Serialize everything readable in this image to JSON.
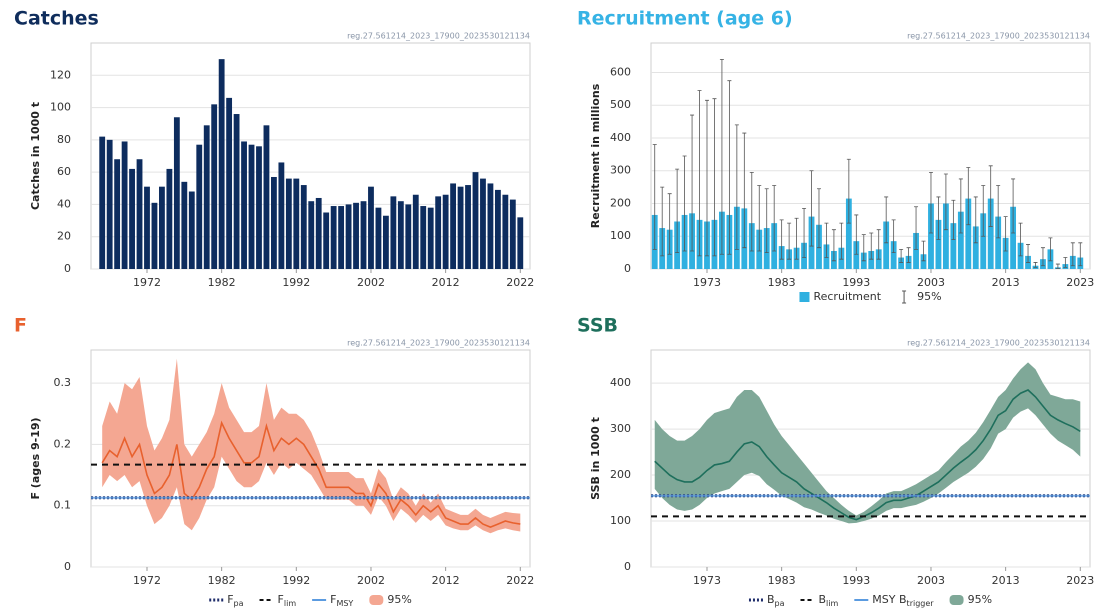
{
  "chart_data": [
    {
      "type": "bar",
      "title": "Catches",
      "title_color": "#0f2d5c",
      "note": "reg.27.561214_2023_17900_2023530121134",
      "ylabel": "Catches in 1000 t",
      "legend": false,
      "grid": true,
      "x": [
        1966,
        1967,
        1968,
        1969,
        1970,
        1971,
        1972,
        1973,
        1974,
        1975,
        1976,
        1977,
        1978,
        1979,
        1980,
        1981,
        1982,
        1983,
        1984,
        1985,
        1986,
        1987,
        1988,
        1989,
        1990,
        1991,
        1992,
        1993,
        1994,
        1995,
        1996,
        1997,
        1998,
        1999,
        2000,
        2001,
        2002,
        2003,
        2004,
        2005,
        2006,
        2007,
        2008,
        2009,
        2010,
        2011,
        2012,
        2013,
        2014,
        2015,
        2016,
        2017,
        2018,
        2019,
        2020,
        2021,
        2022
      ],
      "xlim": [
        1964.5,
        2023.3
      ],
      "xticks": [
        1972,
        1982,
        1992,
        2002,
        2012,
        2022
      ],
      "ylim": [
        0,
        140
      ],
      "yticks": [
        0,
        20,
        40,
        60,
        80,
        100,
        120
      ],
      "series": [
        {
          "color": "#0d2c5e",
          "values": [
            82,
            80,
            68,
            79,
            62,
            68,
            51,
            41,
            51,
            62,
            94,
            54,
            48,
            77,
            89,
            102,
            130,
            106,
            96,
            79,
            77,
            76,
            89,
            57,
            66,
            56,
            56,
            52,
            42,
            44,
            35,
            39,
            39,
            40,
            41,
            42,
            51,
            38,
            33,
            45,
            42,
            40,
            46,
            39,
            38,
            45,
            46,
            53,
            51,
            52,
            60,
            56,
            53,
            49,
            46,
            43,
            32
          ]
        }
      ]
    },
    {
      "type": "bar",
      "title": "Recruitment (age 6)",
      "title_color": "#36b3e5",
      "note": "reg.27.561214_2023_17900_2023530121134",
      "ylabel": "Recruitment in millions",
      "legend": true,
      "grid": true,
      "x": [
        1966,
        1967,
        1968,
        1969,
        1970,
        1971,
        1972,
        1973,
        1974,
        1975,
        1976,
        1977,
        1978,
        1979,
        1980,
        1981,
        1982,
        1983,
        1984,
        1985,
        1986,
        1987,
        1988,
        1989,
        1990,
        1991,
        1992,
        1993,
        1994,
        1995,
        1996,
        1997,
        1998,
        1999,
        2000,
        2001,
        2002,
        2003,
        2004,
        2005,
        2006,
        2007,
        2008,
        2009,
        2010,
        2011,
        2012,
        2013,
        2014,
        2015,
        2016,
        2017,
        2018,
        2019,
        2020,
        2021,
        2022,
        2023
      ],
      "xlim": [
        1965.5,
        2024.3
      ],
      "xticks": [
        1973,
        1983,
        1993,
        2003,
        2013,
        2023
      ],
      "ylim": [
        0,
        690
      ],
      "yticks": [
        0,
        100,
        200,
        300,
        400,
        500,
        600
      ],
      "series": [
        {
          "name": "Recruitment",
          "color": "#2fb0e0",
          "values": [
            165,
            125,
            120,
            145,
            165,
            170,
            150,
            145,
            150,
            175,
            165,
            190,
            185,
            140,
            120,
            125,
            140,
            70,
            60,
            65,
            80,
            160,
            135,
            75,
            55,
            65,
            215,
            85,
            50,
            55,
            60,
            145,
            85,
            35,
            40,
            110,
            45,
            200,
            150,
            200,
            140,
            175,
            215,
            130,
            170,
            215,
            160,
            95,
            190,
            80,
            40,
            10,
            30,
            60,
            5,
            15,
            40,
            35
          ],
          "low": [
            60,
            40,
            45,
            50,
            55,
            55,
            40,
            40,
            40,
            45,
            45,
            60,
            65,
            55,
            55,
            50,
            55,
            30,
            30,
            30,
            35,
            70,
            65,
            35,
            25,
            30,
            140,
            45,
            25,
            30,
            30,
            80,
            50,
            20,
            20,
            60,
            25,
            110,
            90,
            120,
            90,
            110,
            135,
            80,
            100,
            130,
            95,
            55,
            110,
            40,
            20,
            5,
            10,
            25,
            2,
            5,
            10,
            10
          ],
          "high": [
            380,
            250,
            230,
            305,
            345,
            470,
            545,
            515,
            520,
            640,
            575,
            440,
            415,
            295,
            255,
            245,
            255,
            150,
            140,
            155,
            185,
            300,
            245,
            140,
            120,
            140,
            335,
            165,
            105,
            110,
            120,
            220,
            150,
            60,
            65,
            190,
            85,
            295,
            220,
            290,
            210,
            275,
            310,
            220,
            255,
            315,
            255,
            160,
            275,
            140,
            75,
            20,
            65,
            95,
            15,
            35,
            80,
            80
          ],
          "interval": {
            "name": "95%",
            "color": "#555555"
          }
        }
      ]
    },
    {
      "type": "line",
      "title": "F",
      "title_color": "#e8612e",
      "note": "reg.27.561214_2023_17900_2023530121134",
      "ylabel": "F (ages 9-19)",
      "legend": true,
      "grid": true,
      "x": [
        1966,
        1967,
        1968,
        1969,
        1970,
        1971,
        1972,
        1973,
        1974,
        1975,
        1976,
        1977,
        1978,
        1979,
        1980,
        1981,
        1982,
        1983,
        1984,
        1985,
        1986,
        1987,
        1988,
        1989,
        1990,
        1991,
        1992,
        1993,
        1994,
        1995,
        1996,
        1997,
        1998,
        1999,
        2000,
        2001,
        2002,
        2003,
        2004,
        2005,
        2006,
        2007,
        2008,
        2009,
        2010,
        2011,
        2012,
        2013,
        2014,
        2015,
        2016,
        2017,
        2018,
        2019,
        2020,
        2021,
        2022
      ],
      "xlim": [
        1964.5,
        2023.3
      ],
      "xticks": [
        1972,
        1982,
        1992,
        2002,
        2012,
        2022
      ],
      "ylim": [
        0,
        0.354
      ],
      "yticks": [
        0,
        0.1,
        0.2,
        0.3
      ],
      "series": [
        {
          "color": "#e8612e",
          "values": [
            0.17,
            0.19,
            0.18,
            0.21,
            0.18,
            0.2,
            0.15,
            0.12,
            0.13,
            0.15,
            0.2,
            0.12,
            0.11,
            0.13,
            0.16,
            0.18,
            0.235,
            0.21,
            0.19,
            0.17,
            0.17,
            0.18,
            0.23,
            0.19,
            0.21,
            0.2,
            0.21,
            0.2,
            0.18,
            0.16,
            0.13,
            0.13,
            0.13,
            0.13,
            0.12,
            0.12,
            0.1,
            0.135,
            0.12,
            0.09,
            0.11,
            0.1,
            0.085,
            0.1,
            0.09,
            0.1,
            0.08,
            0.075,
            0.07,
            0.07,
            0.08,
            0.07,
            0.065,
            0.07,
            0.075,
            0.072,
            0.07
          ],
          "low": [
            0.13,
            0.15,
            0.14,
            0.15,
            0.13,
            0.14,
            0.1,
            0.07,
            0.08,
            0.1,
            0.13,
            0.07,
            0.06,
            0.08,
            0.11,
            0.13,
            0.18,
            0.16,
            0.14,
            0.13,
            0.13,
            0.14,
            0.17,
            0.15,
            0.17,
            0.16,
            0.17,
            0.16,
            0.15,
            0.13,
            0.11,
            0.11,
            0.11,
            0.11,
            0.1,
            0.1,
            0.085,
            0.115,
            0.1,
            0.075,
            0.095,
            0.085,
            0.072,
            0.085,
            0.075,
            0.085,
            0.068,
            0.063,
            0.06,
            0.06,
            0.068,
            0.06,
            0.055,
            0.06,
            0.063,
            0.06,
            0.058
          ],
          "high": [
            0.23,
            0.27,
            0.25,
            0.3,
            0.29,
            0.31,
            0.23,
            0.19,
            0.21,
            0.24,
            0.34,
            0.2,
            0.18,
            0.2,
            0.22,
            0.25,
            0.3,
            0.26,
            0.24,
            0.22,
            0.22,
            0.23,
            0.3,
            0.24,
            0.26,
            0.25,
            0.25,
            0.24,
            0.22,
            0.19,
            0.155,
            0.155,
            0.155,
            0.155,
            0.145,
            0.145,
            0.12,
            0.16,
            0.145,
            0.11,
            0.13,
            0.12,
            0.1,
            0.12,
            0.105,
            0.12,
            0.095,
            0.09,
            0.085,
            0.085,
            0.095,
            0.085,
            0.08,
            0.085,
            0.09,
            0.088,
            0.087
          ],
          "interval": {
            "name": "95%",
            "color": "#f4a792"
          }
        }
      ],
      "reference_lines": [
        {
          "name": "F",
          "sub": "pa",
          "value": 0.113,
          "style": "dotted",
          "color": "#1f2d6b"
        },
        {
          "name": "F",
          "sub": "lim",
          "value": 0.167,
          "style": "dashed",
          "color": "#111111"
        },
        {
          "name": "F",
          "sub": "MSY",
          "value": 0.113,
          "style": "solid",
          "color": "#5b9be0"
        }
      ]
    },
    {
      "type": "line",
      "title": "SSB",
      "title_color": "#1e6f5c",
      "note": "reg.27.561214_2023_17900_2023530121134",
      "ylabel": "SSB in 1000 t",
      "legend": true,
      "grid": true,
      "x": [
        1966,
        1967,
        1968,
        1969,
        1970,
        1971,
        1972,
        1973,
        1974,
        1975,
        1976,
        1977,
        1978,
        1979,
        1980,
        1981,
        1982,
        1983,
        1984,
        1985,
        1986,
        1987,
        1988,
        1989,
        1990,
        1991,
        1992,
        1993,
        1994,
        1995,
        1996,
        1997,
        1998,
        1999,
        2000,
        2001,
        2002,
        2003,
        2004,
        2005,
        2006,
        2007,
        2008,
        2009,
        2010,
        2011,
        2012,
        2013,
        2014,
        2015,
        2016,
        2017,
        2018,
        2019,
        2020,
        2021,
        2022,
        2023
      ],
      "xlim": [
        1965.5,
        2024.3
      ],
      "xticks": [
        1973,
        1983,
        1993,
        2003,
        2013,
        2023
      ],
      "ylim": [
        0,
        472
      ],
      "yticks": [
        0,
        100,
        200,
        300,
        400
      ],
      "series": [
        {
          "color": "#1e6f5c",
          "values": [
            230,
            215,
            200,
            190,
            185,
            185,
            195,
            210,
            222,
            225,
            230,
            250,
            268,
            272,
            262,
            240,
            222,
            205,
            195,
            185,
            170,
            160,
            150,
            140,
            128,
            118,
            108,
            103,
            110,
            118,
            128,
            140,
            145,
            145,
            150,
            155,
            165,
            175,
            185,
            200,
            215,
            228,
            240,
            255,
            275,
            300,
            330,
            340,
            365,
            378,
            385,
            370,
            350,
            330,
            320,
            312,
            305,
            295
          ],
          "low": [
            170,
            150,
            135,
            125,
            122,
            125,
            135,
            150,
            160,
            165,
            170,
            185,
            200,
            205,
            198,
            180,
            168,
            155,
            148,
            140,
            130,
            125,
            118,
            112,
            105,
            100,
            95,
            96,
            100,
            105,
            112,
            122,
            128,
            128,
            132,
            135,
            142,
            150,
            160,
            172,
            185,
            195,
            205,
            218,
            235,
            258,
            290,
            300,
            325,
            338,
            345,
            330,
            310,
            290,
            275,
            265,
            255,
            240
          ],
          "high": [
            320,
            300,
            285,
            275,
            275,
            285,
            300,
            320,
            335,
            340,
            345,
            370,
            385,
            385,
            370,
            340,
            310,
            285,
            265,
            245,
            225,
            205,
            185,
            165,
            150,
            135,
            122,
            112,
            120,
            132,
            145,
            160,
            165,
            165,
            172,
            180,
            190,
            200,
            210,
            228,
            245,
            262,
            275,
            292,
            315,
            342,
            370,
            385,
            410,
            430,
            445,
            430,
            400,
            375,
            370,
            365,
            365,
            360
          ],
          "interval": {
            "name": "95%",
            "color": "#7fa898"
          }
        }
      ],
      "reference_lines": [
        {
          "name": "B",
          "sub": "pa",
          "value": 155,
          "style": "dotted",
          "color": "#1f2d6b"
        },
        {
          "name": "B",
          "sub": "lim",
          "value": 110,
          "style": "dashed",
          "color": "#111111"
        },
        {
          "name": "MSY B",
          "sub": "trigger",
          "value": 155,
          "style": "solid",
          "color": "#5b9be0"
        }
      ]
    }
  ]
}
